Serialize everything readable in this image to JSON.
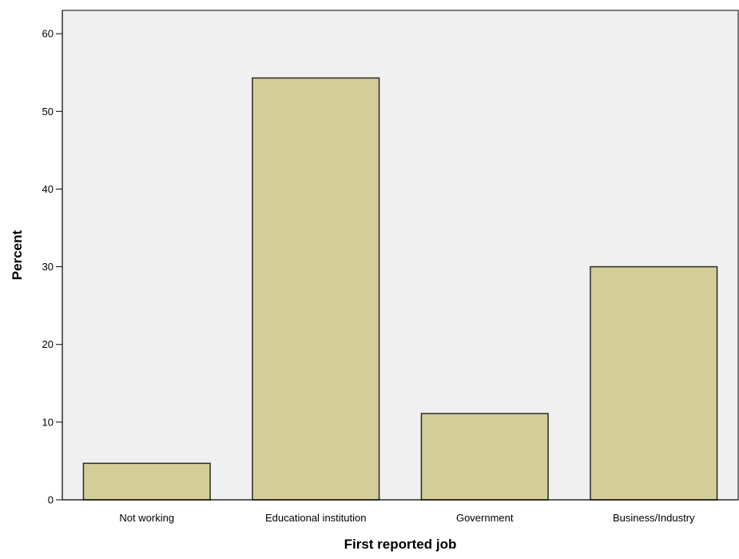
{
  "chart_data": {
    "type": "bar",
    "title": "",
    "xlabel": "First reported job",
    "ylabel": "Percent",
    "categories": [
      "Not working",
      "Educational institution",
      "Government",
      "Business/Industry"
    ],
    "values": [
      4.7,
      54.3,
      11.1,
      30.0
    ],
    "ylim": [
      0,
      63
    ],
    "yticks": [
      "0",
      "10",
      "20",
      "30",
      "40",
      "50",
      "60"
    ],
    "grid": false,
    "legend": "none"
  },
  "colors": {
    "plot_background": "#f0f0f0",
    "bar_fill": "#d3ce97",
    "bar_stroke": "#2a2a2a",
    "axis": "#000000"
  }
}
